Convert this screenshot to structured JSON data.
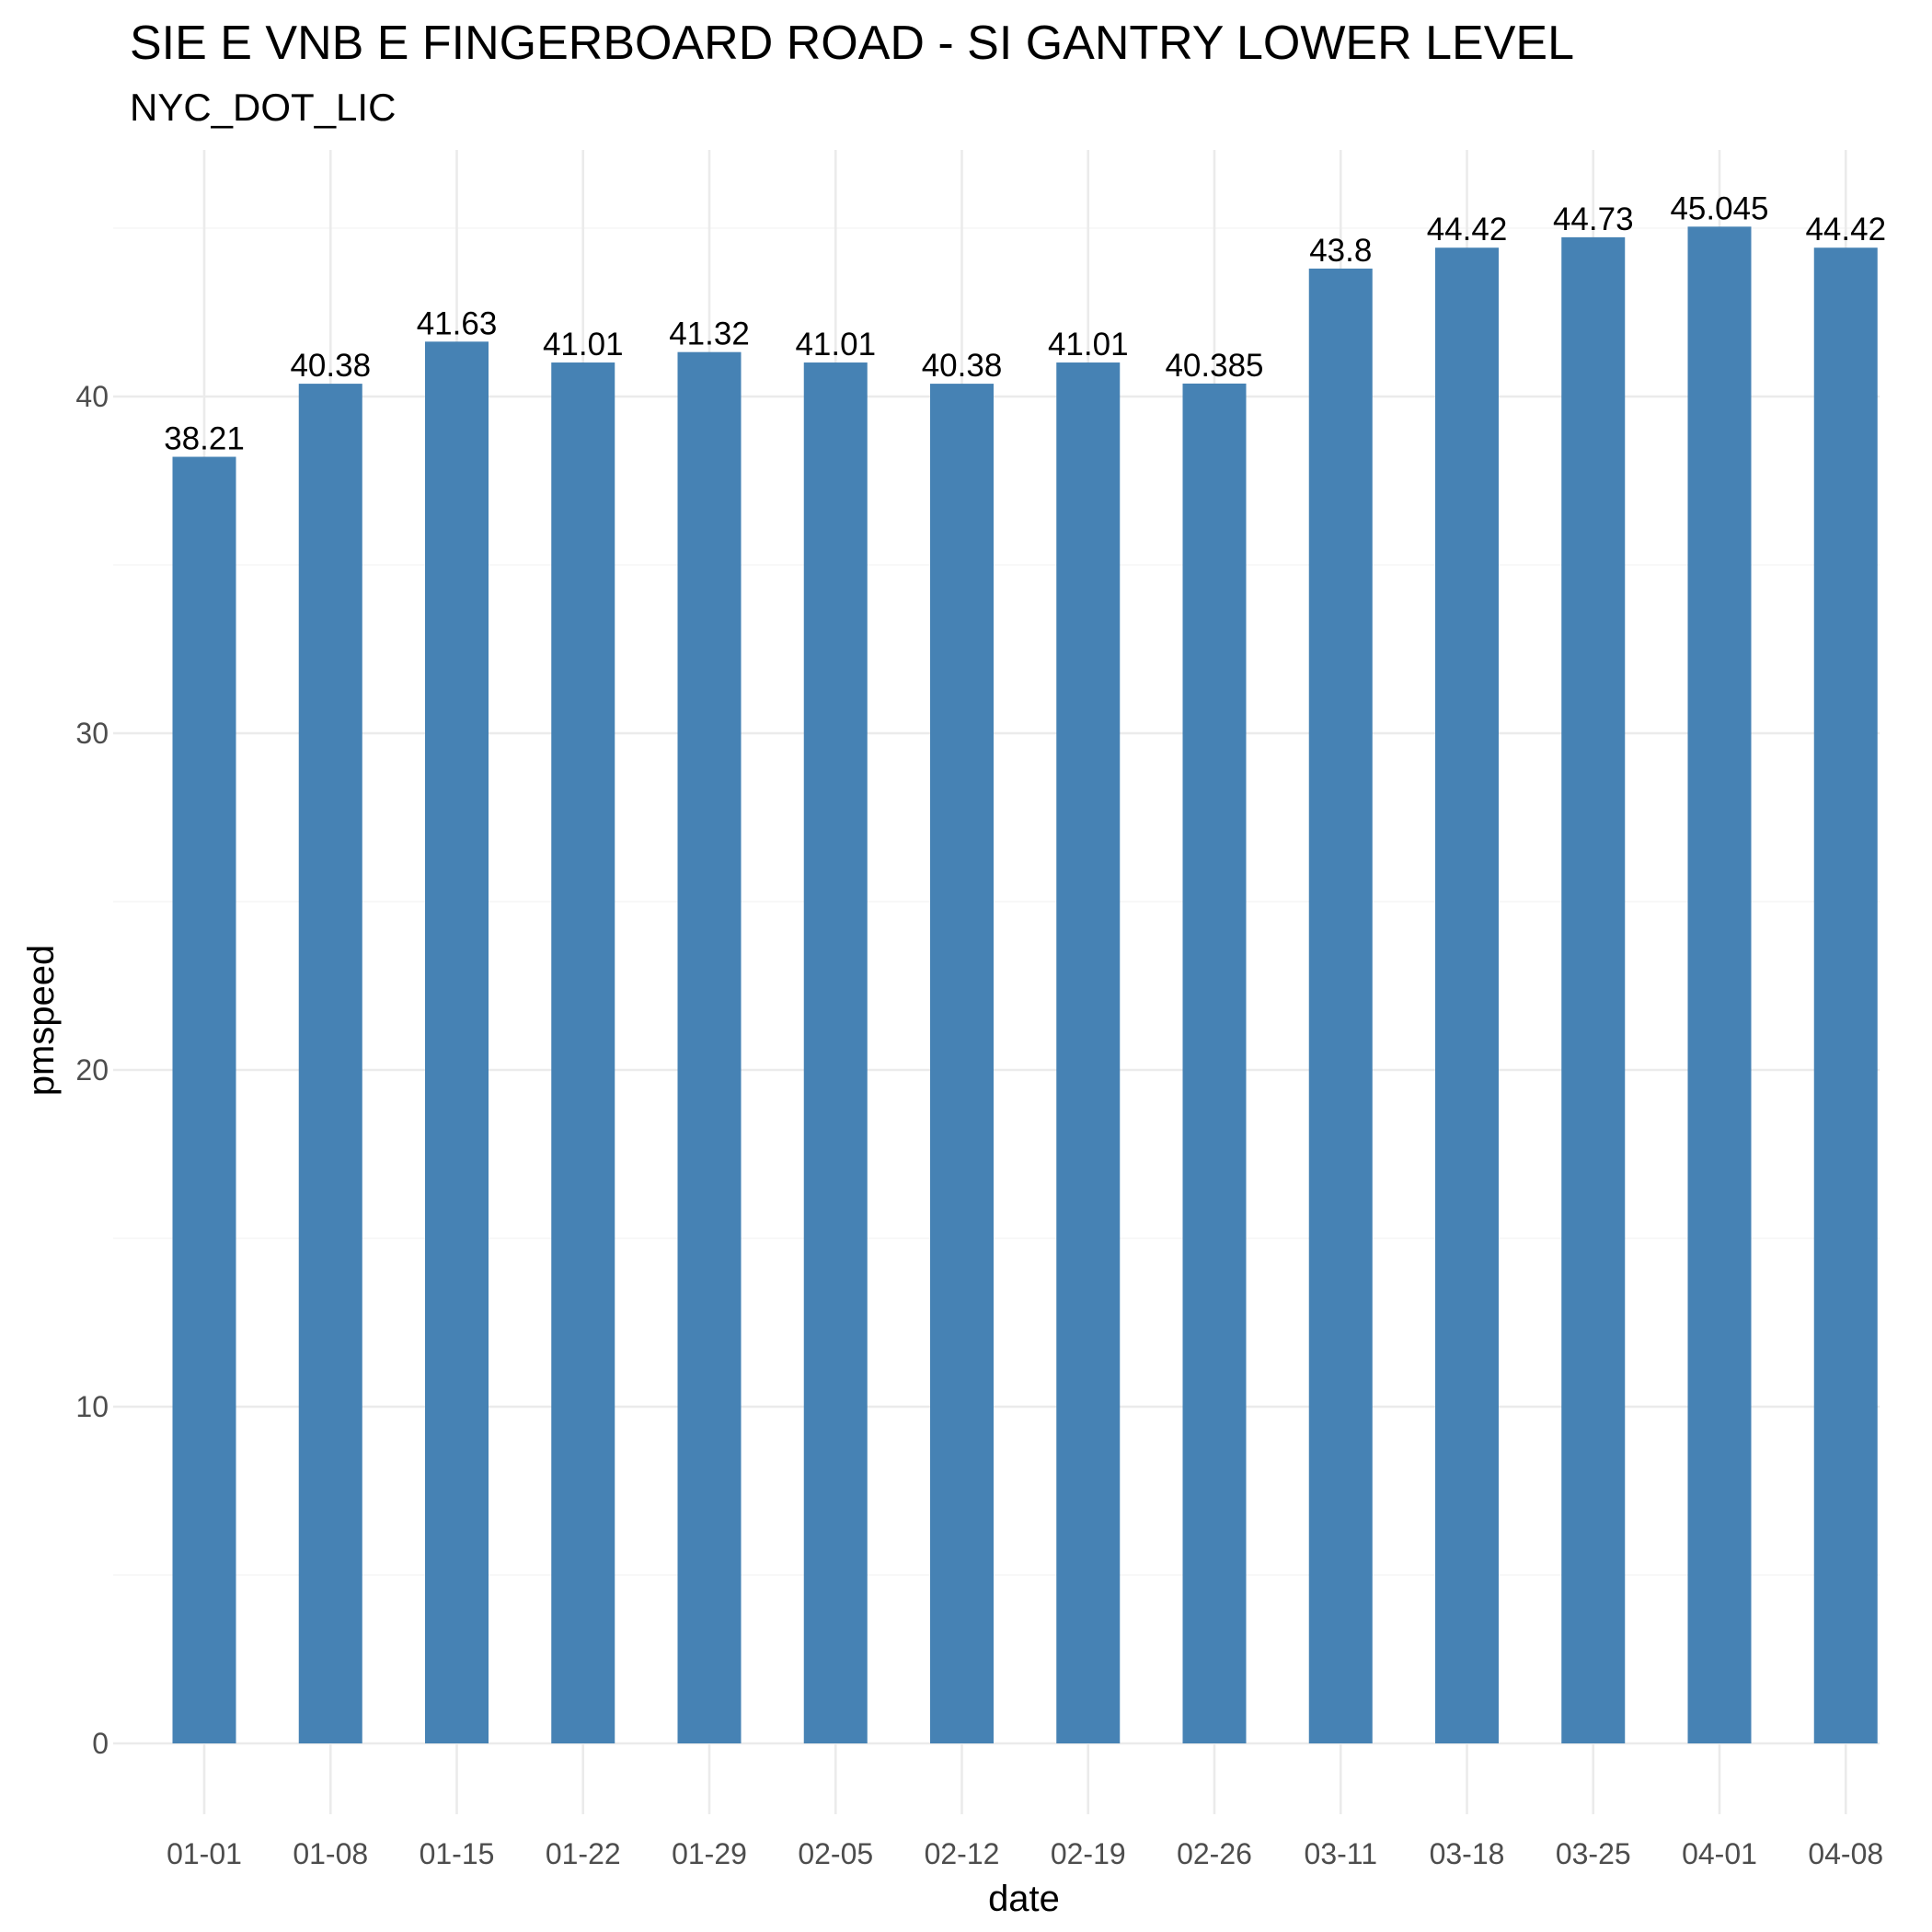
{
  "chart_data": {
    "type": "bar",
    "title": "SIE E VNB E FINGERBOARD ROAD - SI GANTRY LOWER LEVEL",
    "subtitle": "NYC_DOT_LIC",
    "xlabel": "date",
    "ylabel": "pmspeed",
    "categories": [
      "01-01",
      "01-08",
      "01-15",
      "01-22",
      "01-29",
      "02-05",
      "02-12",
      "02-19",
      "02-26",
      "03-11",
      "03-18",
      "03-25",
      "04-01",
      "04-08"
    ],
    "values": [
      38.21,
      40.38,
      41.63,
      41.01,
      41.32,
      41.01,
      40.38,
      41.01,
      40.385,
      43.8,
      44.42,
      44.73,
      45.045,
      44.42
    ],
    "value_labels": [
      "38.21",
      "40.38",
      "41.63",
      "41.01",
      "41.32",
      "41.01",
      "40.38",
      "41.01",
      "40.385",
      "43.8",
      "44.42",
      "44.73",
      "45.045",
      "44.42"
    ],
    "ylim": [
      0,
      47.3
    ],
    "yticks": [
      0,
      10,
      20,
      30,
      40
    ],
    "ytick_labels": [
      "0",
      "10",
      "20",
      "30",
      "40"
    ],
    "grid": true,
    "bar_color": "#4682B4"
  }
}
